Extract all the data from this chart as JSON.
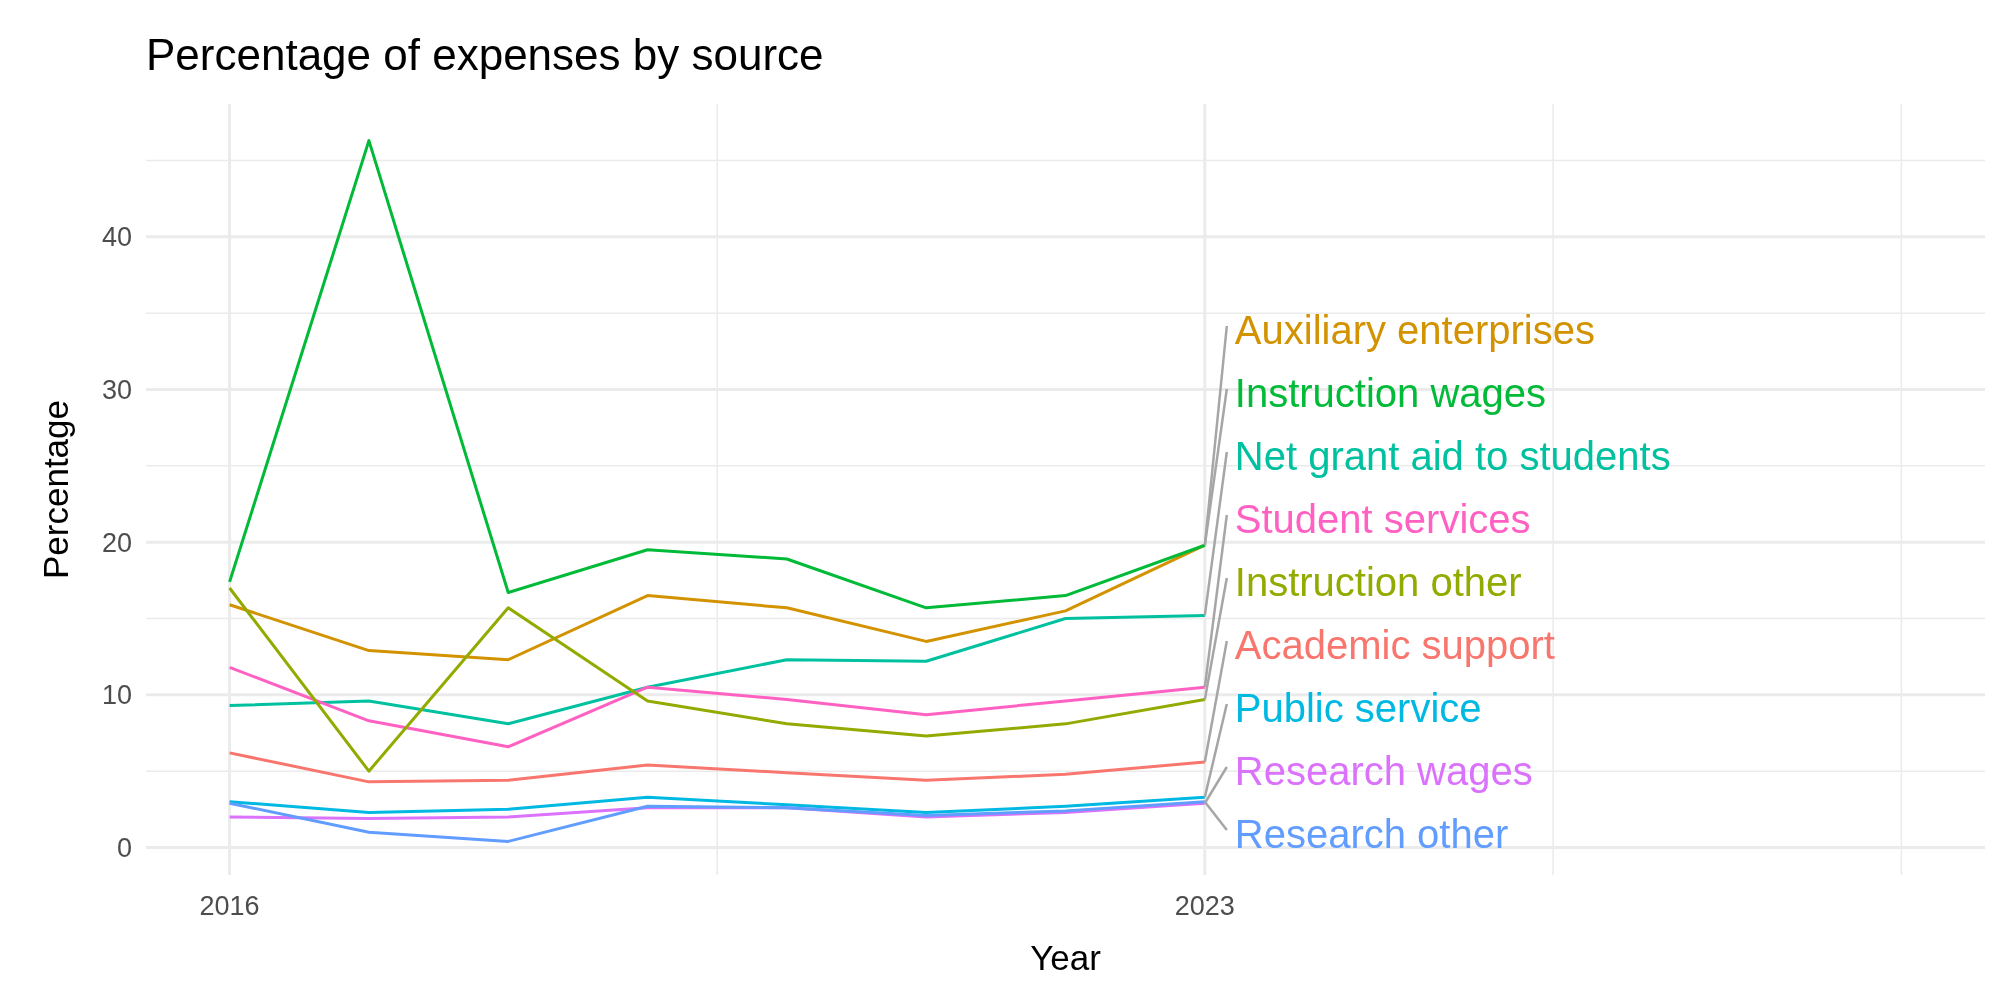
{
  "chart_data": {
    "type": "line",
    "title": "Percentage of expenses by source",
    "xlabel": "Year",
    "ylabel": "Percentage",
    "x": [
      2016,
      2017,
      2018,
      2019,
      2020,
      2021,
      2022,
      2023
    ],
    "xlim": [
      2015.4,
      2028.6
    ],
    "xticks": [
      2016,
      {
        "value": 2019.5,
        "label": null
      },
      2023,
      {
        "value": 2025.5,
        "label": null
      },
      {
        "value": 2028,
        "label": null
      }
    ],
    "ylim": [
      -1.8,
      48.7
    ],
    "yticks": [
      0,
      {
        "value": 5,
        "label": null
      },
      10,
      {
        "value": 15,
        "label": null
      },
      20,
      {
        "value": 25,
        "label": null
      },
      30,
      {
        "value": 35,
        "label": null
      },
      40,
      {
        "value": 45,
        "label": null
      }
    ],
    "grid": true,
    "legend": false,
    "line_style": "solid",
    "marker": "none",
    "series": [
      {
        "name": "Auxiliary enterprises",
        "color": "#d39200",
        "values": [
          15.9,
          12.9,
          12.3,
          16.5,
          15.7,
          13.5,
          15.5,
          19.8
        ]
      },
      {
        "name": "Instruction wages",
        "color": "#00ba38",
        "values": [
          17.4,
          46.3,
          16.7,
          19.5,
          18.9,
          15.7,
          16.5,
          19.8
        ]
      },
      {
        "name": "Net grant aid to students",
        "color": "#00c19f",
        "values": [
          9.3,
          9.6,
          8.1,
          10.5,
          12.3,
          12.2,
          15.0,
          15.2
        ]
      },
      {
        "name": "Student services",
        "color": "#ff61c3",
        "values": [
          11.8,
          8.3,
          6.6,
          10.5,
          9.7,
          8.7,
          9.6,
          10.5
        ]
      },
      {
        "name": "Instruction other",
        "color": "#93aa00",
        "values": [
          17.0,
          5.0,
          15.7,
          9.6,
          8.1,
          7.3,
          8.1,
          9.7
        ]
      },
      {
        "name": "Academic support",
        "color": "#f8766d",
        "values": [
          6.2,
          4.3,
          4.4,
          5.4,
          4.9,
          4.4,
          4.8,
          5.6
        ]
      },
      {
        "name": "Public service",
        "color": "#00b9e3",
        "values": [
          3.0,
          2.3,
          2.5,
          3.3,
          2.8,
          2.3,
          2.7,
          3.3
        ]
      },
      {
        "name": "Research wages",
        "color": "#db72fb",
        "values": [
          2.0,
          1.9,
          2.0,
          2.6,
          2.6,
          2.0,
          2.3,
          2.9
        ]
      },
      {
        "name": "Research other",
        "color": "#619cff",
        "values": [
          2.9,
          1.0,
          0.4,
          2.7,
          2.6,
          2.1,
          2.4,
          3.0
        ]
      }
    ]
  }
}
